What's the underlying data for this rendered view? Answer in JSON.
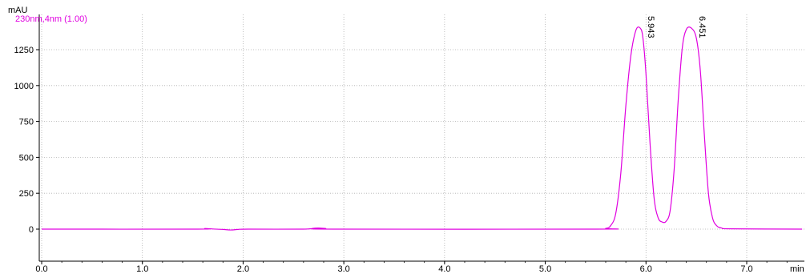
{
  "chart_data": {
    "type": "line",
    "ylabel": "mAU",
    "xlabel": "min",
    "legend": "230nm,4nm (1.00)",
    "xlim": [
      0.0,
      7.55
    ],
    "ylim": [
      -300,
      1380
    ],
    "x_ticks": [
      0.0,
      1.0,
      2.0,
      3.0,
      4.0,
      5.0,
      6.0,
      7.0
    ],
    "x_tick_labels": [
      "0.0",
      "1.0",
      "2.0",
      "3.0",
      "4.0",
      "5.0",
      "6.0",
      "7.0"
    ],
    "y_ticks": [
      0,
      250,
      500,
      750,
      1000,
      1250
    ],
    "y_tick_labels": [
      "0",
      "250",
      "500",
      "750",
      "1000",
      "1250"
    ],
    "grid": true,
    "series": [
      {
        "color": "#e000e0",
        "x": [
          0.0,
          1.55,
          1.62,
          1.7,
          1.8,
          1.88,
          1.95,
          2.05,
          2.6,
          2.7,
          2.75,
          2.82,
          2.9,
          5.5,
          5.6,
          5.65,
          5.7,
          5.75,
          5.8,
          5.85,
          5.9,
          5.943,
          5.97,
          6.0,
          6.04,
          6.08,
          6.12,
          6.16,
          6.2,
          6.24,
          6.28,
          6.32,
          6.36,
          6.4,
          6.451,
          6.5,
          6.54,
          6.58,
          6.62,
          6.66,
          6.7,
          6.75,
          6.85,
          7.55
        ],
        "y": [
          0,
          0,
          4,
          1,
          -2,
          -6,
          -2,
          0,
          0,
          6,
          8,
          4,
          0,
          0,
          5,
          25,
          110,
          390,
          860,
          1210,
          1385,
          1400,
          1330,
          1080,
          600,
          220,
          80,
          50,
          55,
          130,
          420,
          900,
          1260,
          1390,
          1400,
          1330,
          1100,
          650,
          250,
          80,
          25,
          8,
          2,
          0
        ]
      }
    ],
    "peaks": [
      {
        "time": 5.943,
        "label": "5.943"
      },
      {
        "time": 6.451,
        "label": "6.451"
      }
    ]
  }
}
